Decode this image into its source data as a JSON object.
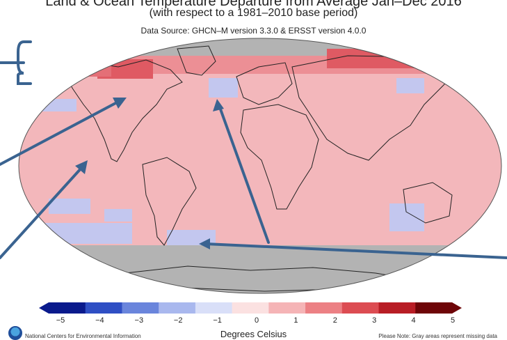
{
  "title": {
    "main": "Land & Ocean Temperature Departure from Average Jan–Dec 2016",
    "sub": "(with respect to a 1981–2010 base period)",
    "source": "Data Source: GHCN–M version 3.3.0 & ERSST version 4.0.0"
  },
  "colorbar": {
    "ticks": [
      "−5",
      "−4",
      "−3",
      "−2",
      "−1",
      "0",
      "1",
      "2",
      "3",
      "4",
      "5"
    ],
    "label": "Degrees Celsius",
    "colors": [
      "#0a1a8c",
      "#2f4fc4",
      "#6a85dc",
      "#a9b8ee",
      "#d9dff8",
      "#fbe1e1",
      "#f5b4b6",
      "#ec8084",
      "#dc4c52",
      "#b81d25",
      "#6e0508"
    ]
  },
  "footer": {
    "agency": "National Centers for Environmental Information",
    "note": "Please Note: Gray areas represent missing data",
    "logo": "noaa-logo"
  },
  "map_colors": {
    "ocean_base": "#f3b7bb",
    "warm": "#ec8f95",
    "hot": "#df5a63",
    "cool": "#c3c7ef",
    "missing": "#b3b3b3",
    "arrow": "#3a6390"
  }
}
